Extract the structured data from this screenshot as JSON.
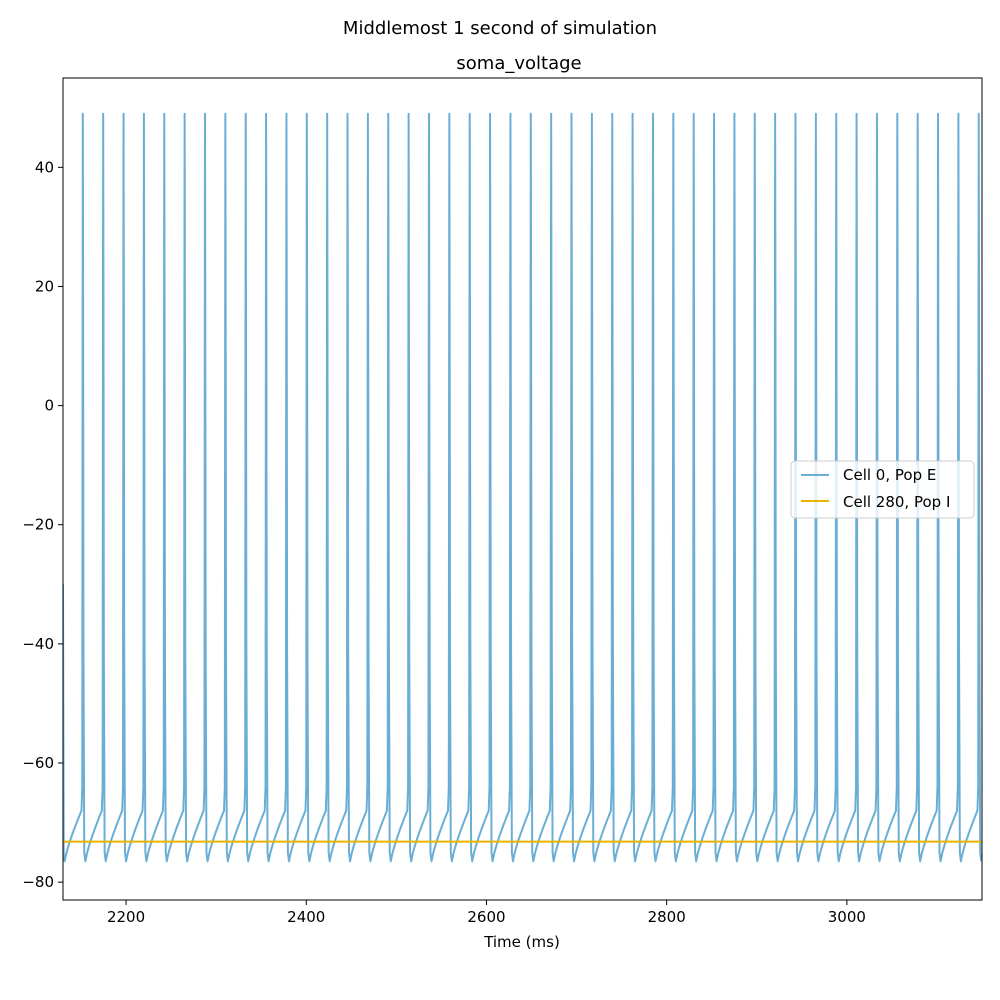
{
  "chart_data": {
    "type": "line",
    "suptitle": "Middlemost 1 second of simulation",
    "title": "soma_voltage",
    "xlabel": "Time (ms)",
    "ylabel": "",
    "xlim": [
      2130,
      3150
    ],
    "ylim": [
      -83,
      55
    ],
    "xticks": [
      2200,
      2400,
      2600,
      2800,
      3000
    ],
    "xtick_labels": [
      "2200",
      "2400",
      "2600",
      "2800",
      "3000"
    ],
    "yticks": [
      -80,
      -60,
      -40,
      -20,
      0,
      20,
      40
    ],
    "ytick_labels": [
      "−80",
      "−60",
      "−40",
      "−20",
      "0",
      "20",
      "40"
    ],
    "grid": false,
    "legend_position": "center-right",
    "series": [
      {
        "name": "Cell 0, Pop E",
        "color": "#6aaed6",
        "kind": "spike-train",
        "spike_times": [
          2152,
          2174.6,
          2197.2,
          2219.8,
          2242.4,
          2265,
          2287.6,
          2310.2,
          2332.8,
          2355.4,
          2378,
          2400.6,
          2423.2,
          2445.8,
          2468.4,
          2491,
          2513.6,
          2536.2,
          2558.8,
          2581.4,
          2604,
          2626.6,
          2649.2,
          2671.8,
          2694.4,
          2717,
          2739.6,
          2762.2,
          2784.8,
          2807.4,
          2830,
          2852.6,
          2875.2,
          2897.8,
          2920.4,
          2943,
          2965.6,
          2988.2,
          3010.8,
          3033.4,
          3056,
          3078.6,
          3101.2,
          3123.8,
          3146.4
        ],
        "peak": 49,
        "trough": -76.5,
        "threshold": -68
      },
      {
        "name": "Cell 280, Pop I",
        "color": "#e8b400",
        "kind": "constant",
        "value": -73.2
      }
    ]
  }
}
